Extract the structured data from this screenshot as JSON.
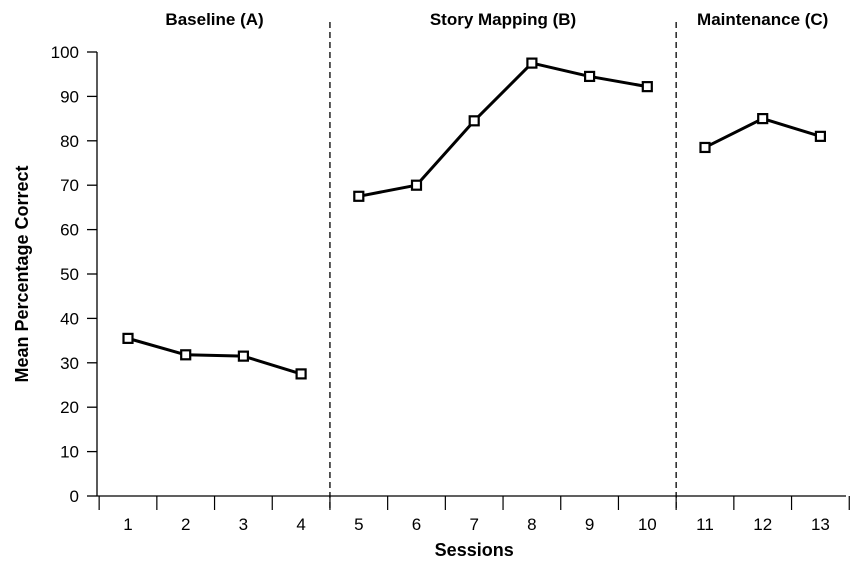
{
  "chart_data": {
    "type": "line",
    "xlabel": "Sessions",
    "ylabel": "Mean Percentage Correct",
    "ylim": [
      0,
      100
    ],
    "yticks": [
      0,
      10,
      20,
      30,
      40,
      50,
      60,
      70,
      80,
      90,
      100
    ],
    "x_categories": [
      "1",
      "2",
      "3",
      "4",
      "5",
      "6",
      "7",
      "8",
      "9",
      "10",
      "11",
      "12",
      "13"
    ],
    "phase_change_after_sessions": [
      4,
      10
    ],
    "phases": [
      {
        "label": "Baseline (A)",
        "sessions": [
          1,
          2,
          3,
          4
        ],
        "values": [
          35.5,
          31.8,
          31.5,
          27.5
        ]
      },
      {
        "label": "Story Mapping (B)",
        "sessions": [
          5,
          6,
          7,
          8,
          9,
          10
        ],
        "values": [
          67.5,
          70,
          84.5,
          97.5,
          94.5,
          92.2
        ]
      },
      {
        "label": "Maintenance (C)",
        "sessions": [
          11,
          12,
          13
        ],
        "values": [
          78.5,
          85,
          81
        ]
      }
    ],
    "marker": "open-square",
    "line_color": "#000000",
    "grid": false,
    "legend": "none"
  }
}
